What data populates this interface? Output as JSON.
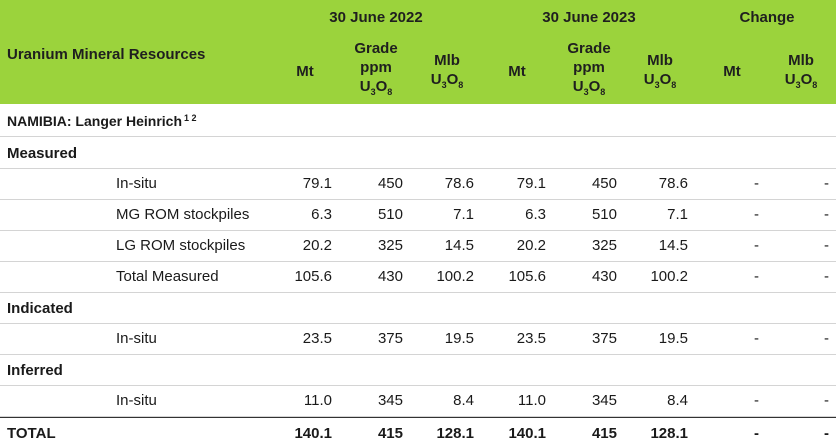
{
  "header": {
    "title": "Uranium Mineral Resources",
    "period_2022": "30 June 2022",
    "period_2023": "30 June 2023",
    "period_change": "Change",
    "col_mt": "Mt",
    "col_grade_line1": "Grade",
    "col_grade_line2": "ppm",
    "col_mlb_line1": "Mlb",
    "u_letter": "U",
    "u_sub": "3",
    "o_letter": "O",
    "o_sub": "8"
  },
  "location": {
    "name": "NAMIBIA: Langer Heinrich",
    "note": "1 2"
  },
  "sections": {
    "measured": "Measured",
    "indicated": "Indicated",
    "inferred": "Inferred"
  },
  "rows": [
    {
      "label": "In-situ",
      "values": [
        "79.1",
        "450",
        "78.6",
        "79.1",
        "450",
        "78.6",
        "-",
        "-"
      ]
    },
    {
      "label": "MG ROM stockpiles",
      "values": [
        "6.3",
        "510",
        "7.1",
        "6.3",
        "510",
        "7.1",
        "-",
        "-"
      ]
    },
    {
      "label": "LG ROM stockpiles",
      "values": [
        "20.2",
        "325",
        "14.5",
        "20.2",
        "325",
        "14.5",
        "-",
        "-"
      ]
    },
    {
      "label": "Total Measured",
      "values": [
        "105.6",
        "430",
        "100.2",
        "105.6",
        "430",
        "100.2",
        "-",
        "-"
      ]
    },
    {
      "label": "In-situ",
      "values": [
        "23.5",
        "375",
        "19.5",
        "23.5",
        "375",
        "19.5",
        "-",
        "-"
      ]
    },
    {
      "label": "In-situ",
      "values": [
        "11.0",
        "345",
        "8.4",
        "11.0",
        "345",
        "8.4",
        "-",
        "-"
      ]
    }
  ],
  "total": {
    "label": "TOTAL",
    "values": [
      "140.1",
      "415",
      "128.1",
      "140.1",
      "415",
      "128.1",
      "-",
      "-"
    ]
  },
  "colors": {
    "header_bg": "#9bd33c",
    "divider": "#d4d4d4"
  }
}
